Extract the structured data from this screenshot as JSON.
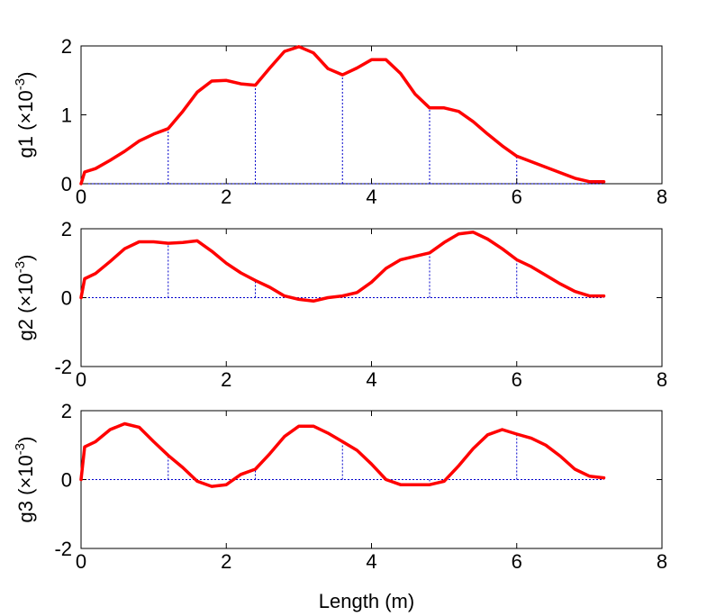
{
  "figure": {
    "xlabel": "Length (m)"
  },
  "chart_data": [
    {
      "type": "line",
      "ylabel": "g1 (×10",
      "ylabel_exp": "-3",
      "ylabel_close": ")",
      "xlim": [
        0,
        8
      ],
      "ylim": [
        0,
        2
      ],
      "xticks": [
        0,
        2,
        4,
        6,
        8
      ],
      "yticks": [
        0,
        1,
        2
      ],
      "grid": false,
      "series": [
        {
          "color": "#ff0000",
          "x": [
            0,
            0.05,
            0.2,
            0.4,
            0.6,
            0.8,
            1.0,
            1.2,
            1.4,
            1.6,
            1.8,
            2.0,
            2.2,
            2.4,
            2.6,
            2.8,
            3.0,
            3.2,
            3.4,
            3.6,
            3.8,
            4.0,
            4.2,
            4.4,
            4.6,
            4.8,
            5.0,
            5.2,
            5.4,
            5.6,
            5.8,
            6.0,
            6.2,
            6.4,
            6.6,
            6.8,
            7.0,
            7.2
          ],
          "y": [
            0,
            0.17,
            0.22,
            0.34,
            0.47,
            0.62,
            0.72,
            0.8,
            1.05,
            1.33,
            1.49,
            1.5,
            1.45,
            1.43,
            1.68,
            1.92,
            1.99,
            1.9,
            1.67,
            1.58,
            1.68,
            1.8,
            1.8,
            1.6,
            1.3,
            1.1,
            1.1,
            1.05,
            0.9,
            0.72,
            0.55,
            0.4,
            0.32,
            0.24,
            0.16,
            0.08,
            0.03,
            0.03
          ]
        }
      ],
      "stems_x": [
        1.2,
        2.4,
        3.6,
        4.8,
        6.0
      ]
    },
    {
      "type": "line",
      "ylabel": "g2 (×10",
      "ylabel_exp": "-3",
      "ylabel_close": ")",
      "xlim": [
        0,
        8
      ],
      "ylim": [
        -2,
        2
      ],
      "xticks": [
        0,
        2,
        4,
        6,
        8
      ],
      "yticks": [
        -2,
        0,
        2
      ],
      "grid": false,
      "series": [
        {
          "color": "#ff0000",
          "x": [
            0,
            0.05,
            0.2,
            0.4,
            0.6,
            0.8,
            1.0,
            1.2,
            1.4,
            1.6,
            1.8,
            2.0,
            2.2,
            2.4,
            2.6,
            2.8,
            3.0,
            3.2,
            3.4,
            3.6,
            3.8,
            4.0,
            4.2,
            4.4,
            4.6,
            4.8,
            5.0,
            5.2,
            5.4,
            5.6,
            5.8,
            6.0,
            6.2,
            6.4,
            6.6,
            6.8,
            7.0,
            7.2
          ],
          "y": [
            0,
            0.55,
            0.7,
            1.05,
            1.42,
            1.62,
            1.62,
            1.58,
            1.6,
            1.65,
            1.35,
            1.0,
            0.72,
            0.5,
            0.3,
            0.05,
            -0.05,
            -0.1,
            0.0,
            0.05,
            0.15,
            0.45,
            0.85,
            1.1,
            1.2,
            1.3,
            1.6,
            1.85,
            1.9,
            1.7,
            1.42,
            1.1,
            0.9,
            0.65,
            0.4,
            0.18,
            0.05,
            0.05
          ]
        }
      ],
      "stems_x": [
        1.2,
        2.4,
        3.6,
        4.8,
        6.0
      ]
    },
    {
      "type": "line",
      "ylabel": "g3 (×10",
      "ylabel_exp": "-3",
      "ylabel_close": ")",
      "xlim": [
        0,
        8
      ],
      "ylim": [
        -2,
        2
      ],
      "xticks": [
        0,
        2,
        4,
        6,
        8
      ],
      "yticks": [
        -2,
        0,
        2
      ],
      "grid": false,
      "series": [
        {
          "color": "#ff0000",
          "x": [
            0,
            0.05,
            0.2,
            0.4,
            0.6,
            0.8,
            1.0,
            1.2,
            1.4,
            1.6,
            1.8,
            2.0,
            2.2,
            2.4,
            2.6,
            2.8,
            3.0,
            3.2,
            3.4,
            3.6,
            3.8,
            4.0,
            4.2,
            4.4,
            4.6,
            4.8,
            5.0,
            5.2,
            5.4,
            5.6,
            5.8,
            6.0,
            6.2,
            6.4,
            6.6,
            6.8,
            7.0,
            7.2
          ],
          "y": [
            0,
            0.95,
            1.1,
            1.45,
            1.62,
            1.52,
            1.1,
            0.7,
            0.35,
            -0.05,
            -0.2,
            -0.15,
            0.15,
            0.3,
            0.75,
            1.25,
            1.55,
            1.55,
            1.35,
            1.1,
            0.85,
            0.45,
            0.0,
            -0.15,
            -0.15,
            -0.15,
            -0.05,
            0.4,
            0.9,
            1.3,
            1.45,
            1.32,
            1.2,
            1.0,
            0.68,
            0.3,
            0.1,
            0.05
          ]
        }
      ],
      "stems_x": [
        1.2,
        2.4,
        3.6,
        4.8,
        6.0
      ]
    }
  ]
}
